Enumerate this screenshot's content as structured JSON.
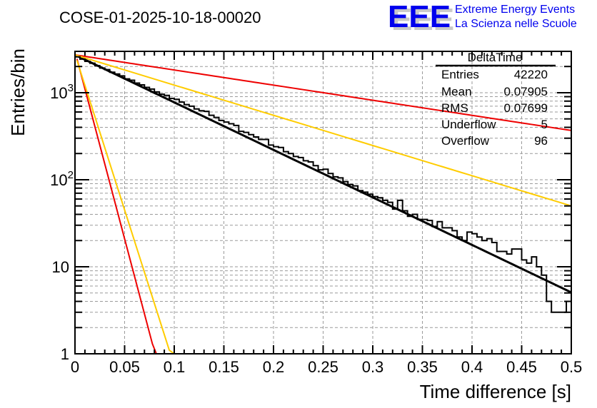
{
  "chart_data": {
    "type": "line",
    "title": "COSE-01-2025-10-18-00020",
    "xlabel": "Time difference [s]",
    "ylabel": "Entries/bin",
    "xlim": [
      0,
      0.5
    ],
    "ylim": [
      1,
      2985
    ],
    "yscale": "log",
    "grid": true,
    "x_ticks": [
      "0",
      "0.05",
      "0.1",
      "0.15",
      "0.2",
      "0.25",
      "0.3",
      "0.35",
      "0.4",
      "0.45",
      "0.5"
    ],
    "x_tick_values": [
      0,
      0.05,
      0.1,
      0.15,
      0.2,
      0.25,
      0.3,
      0.35,
      0.4,
      0.45,
      0.5
    ],
    "y_ticks": [
      {
        "value": 1,
        "base": "1",
        "exp": ""
      },
      {
        "value": 10,
        "base": "10",
        "exp": ""
      },
      {
        "value": 100,
        "base": "10",
        "exp": "2"
      },
      {
        "value": 1000,
        "base": "10",
        "exp": "3"
      }
    ],
    "histogram": {
      "name": "DeltaTime",
      "color": "#000000",
      "bin_width": 0.005,
      "values": [
        2580,
        2430,
        2290,
        2180,
        2040,
        1920,
        1840,
        1720,
        1640,
        1560,
        1440,
        1390,
        1290,
        1230,
        1150,
        1100,
        1020,
        960,
        930,
        860,
        840,
        780,
        730,
        700,
        650,
        620,
        610,
        550,
        520,
        480,
        460,
        440,
        420,
        360,
        350,
        330,
        310,
        290,
        290,
        250,
        240,
        235,
        210,
        200,
        185,
        180,
        165,
        160,
        145,
        130,
        132,
        118,
        108,
        105,
        95,
        88,
        85,
        75,
        72,
        68,
        64,
        62,
        58,
        55,
        46,
        58,
        44,
        38,
        40,
        35,
        35,
        34,
        29,
        33,
        28,
        28,
        26,
        22,
        20,
        25,
        24,
        22,
        20,
        21,
        19,
        15,
        15,
        14,
        16,
        16,
        12,
        11,
        13,
        10,
        8,
        4,
        3,
        3,
        3,
        4
      ]
    },
    "series": [
      {
        "name": "fit",
        "color": "#000000",
        "x": [
          0,
          0.5
        ],
        "y": [
          2720,
          5.07
        ],
        "model": "exponential"
      },
      {
        "name": "red-upper",
        "color": "#ee0000",
        "x": [
          0,
          0.5
        ],
        "y": [
          2720,
          368
        ],
        "model": "exponential"
      },
      {
        "name": "yellow-upper",
        "color": "#ffcc00",
        "x": [
          0,
          0.5
        ],
        "y": [
          2720,
          50
        ],
        "model": "exponential"
      },
      {
        "name": "red-steep",
        "color": "#ee0000",
        "x": [
          0.002,
          0.078,
          0.082
        ],
        "y": [
          2450,
          1.3,
          1.0
        ],
        "model": "polyline"
      },
      {
        "name": "yellow-steep",
        "color": "#ffcc00",
        "x": [
          0.002,
          0.095,
          0.1
        ],
        "y": [
          2350,
          1.1,
          1.0
        ],
        "model": "polyline"
      }
    ],
    "stats_box": {
      "title": "DeltaTime",
      "rows": [
        {
          "label": "Entries",
          "value": "42220"
        },
        {
          "label": "Mean",
          "value": "0.07905"
        },
        {
          "label": "RMS",
          "value": "0.07699"
        },
        {
          "label": "Underflow",
          "value": "5"
        },
        {
          "label": "Overflow",
          "value": "96"
        }
      ]
    }
  },
  "logo": {
    "mark": "EEE",
    "line1": "Extreme Energy Events",
    "line2": "La Scienza nelle Scuole",
    "color": "#0000ee"
  }
}
